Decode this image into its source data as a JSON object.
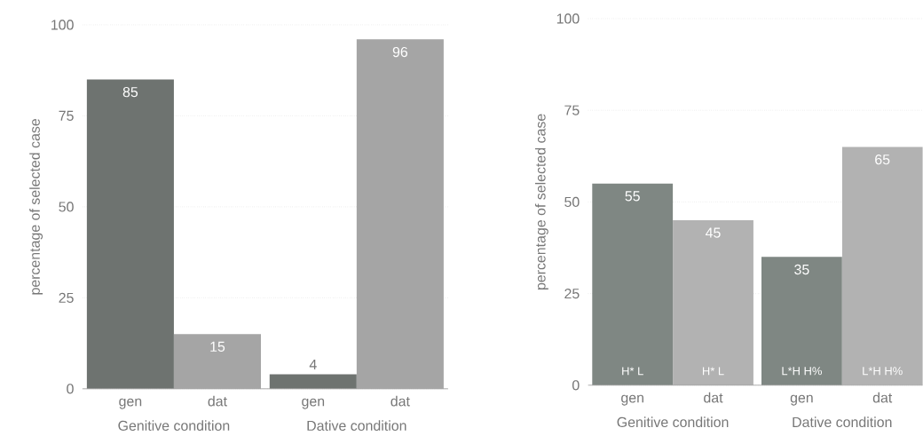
{
  "chart_data": [
    {
      "type": "bar",
      "ylabel": "percentage of selected case",
      "categories": [
        "gen",
        "dat",
        "gen",
        "dat"
      ],
      "values": [
        85,
        15,
        4,
        96
      ],
      "colors": [
        "#6e7370",
        "#a5a5a5",
        "#6e7370",
        "#a5a5a5"
      ],
      "value_labels": [
        "85",
        "15",
        "4",
        "96"
      ],
      "annotations": [
        "Genitive condition",
        "Dative condition"
      ],
      "ylim": [
        0,
        100
      ],
      "yticks": [
        0,
        25,
        50,
        75,
        100
      ],
      "grid": "y"
    },
    {
      "type": "bar",
      "ylabel": "percentage of selected case",
      "categories": [
        "gen",
        "dat",
        "gen",
        "dat"
      ],
      "values": [
        55,
        45,
        35,
        65
      ],
      "colors": [
        "#7f8783",
        "#b2b2b2",
        "#7f8783",
        "#b2b2b2"
      ],
      "value_labels": [
        "55",
        "45",
        "35",
        "65"
      ],
      "annotations": [
        "Genitive condition",
        "Dative condition",
        "H* L",
        "H* L",
        "L*H H%",
        "L*H H%"
      ],
      "ylim": [
        0,
        100
      ],
      "yticks": [
        0,
        25,
        50,
        75,
        100
      ],
      "grid": "y"
    }
  ]
}
